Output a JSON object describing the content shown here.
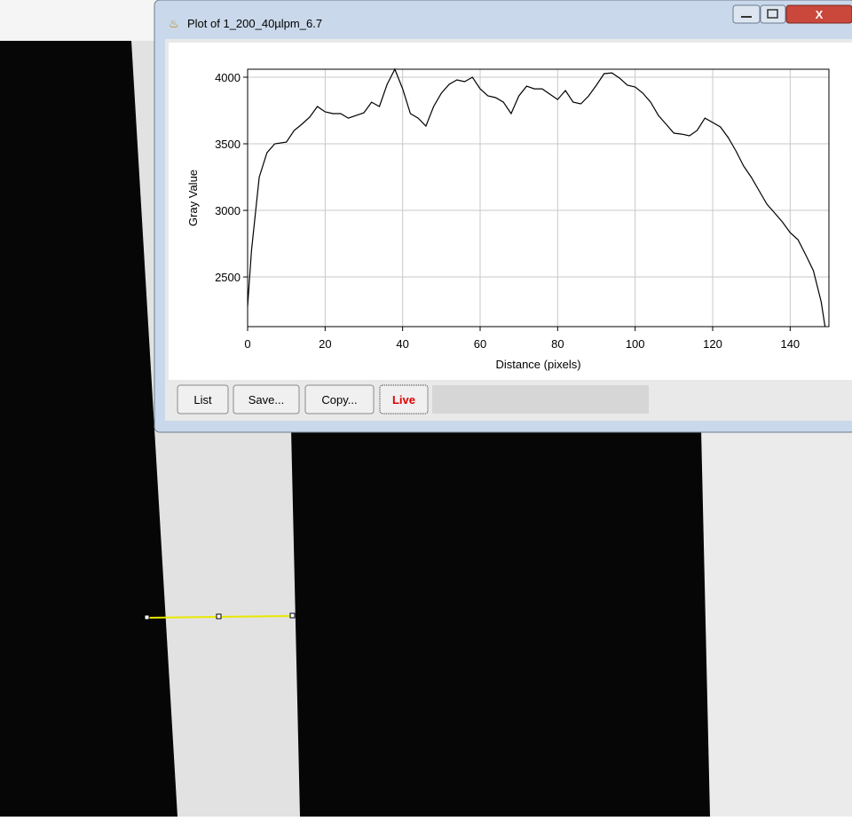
{
  "window": {
    "title": "Plot of 1_200_40µlpm_6.7"
  },
  "buttons": [
    "List",
    "Save...",
    "Copy...",
    "Live"
  ],
  "chart_data": {
    "type": "line",
    "xlabel": "Distance (pixels)",
    "ylabel": "Gray Value",
    "x": [
      0,
      1,
      3,
      5,
      7,
      10,
      12,
      14,
      16,
      18,
      20,
      22,
      24,
      26,
      28,
      30,
      32,
      34,
      36,
      38,
      40,
      42,
      44,
      46,
      48,
      50,
      52,
      54,
      56,
      58,
      60,
      62,
      64,
      66,
      68,
      70,
      72,
      74,
      76,
      78,
      80,
      82,
      84,
      86,
      88,
      90,
      92,
      94,
      96,
      98,
      100,
      102,
      104,
      106,
      108,
      110,
      112,
      114,
      116,
      118,
      120,
      122,
      124,
      126,
      128,
      130,
      132,
      134,
      136,
      138,
      140,
      142,
      144,
      146,
      148,
      149
    ],
    "values": [
      2280,
      2700,
      3250,
      3433,
      3500,
      3513,
      3600,
      3647,
      3700,
      3780,
      3740,
      3727,
      3727,
      3693,
      3713,
      3733,
      3813,
      3780,
      3947,
      4060,
      3913,
      3727,
      3693,
      3633,
      3780,
      3880,
      3947,
      3980,
      3967,
      4000,
      3913,
      3860,
      3847,
      3813,
      3727,
      3860,
      3933,
      3913,
      3913,
      3873,
      3833,
      3900,
      3813,
      3800,
      3860,
      3940,
      4027,
      4033,
      3993,
      3940,
      3927,
      3880,
      3813,
      3713,
      3647,
      3580,
      3573,
      3560,
      3600,
      3693,
      3660,
      3627,
      3547,
      3447,
      3333,
      3247,
      3147,
      3047,
      2980,
      2913,
      2833,
      2780,
      2667,
      2547,
      2313,
      2127
    ],
    "color": "#000000",
    "xlim": [
      0,
      150
    ],
    "ylim": [
      2127,
      4060
    ],
    "xticks": [
      0,
      20,
      40,
      60,
      80,
      100,
      120,
      140
    ],
    "yticks": [
      2500,
      3000,
      3500,
      4000
    ],
    "grid": true
  }
}
